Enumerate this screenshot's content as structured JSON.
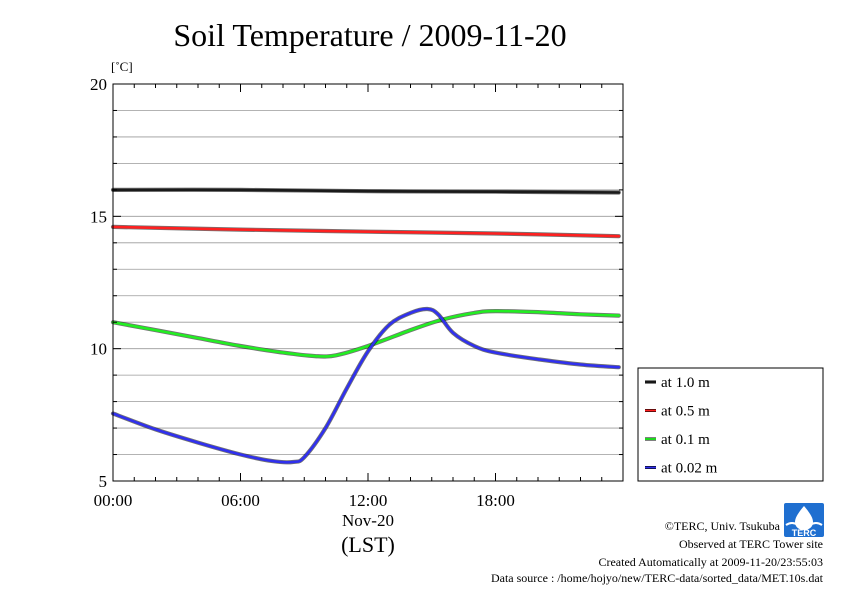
{
  "chart_data": {
    "type": "line",
    "title": "Soil Temperature / 2009-11-20",
    "ylabel": "[˚C]",
    "xlabel": "(LST)",
    "x_date_label": "Nov-20",
    "x_ticks": [
      {
        "hour": 0,
        "label": "00:00"
      },
      {
        "hour": 6,
        "label": "06:00"
      },
      {
        "hour": 12,
        "label": "12:00"
      },
      {
        "hour": 18,
        "label": "18:00"
      }
    ],
    "y_ticks": [
      5,
      10,
      15,
      20
    ],
    "ylim": [
      5,
      20
    ],
    "xlim": [
      "2009-11-20 00:00",
      "2009-11-21 00:00"
    ],
    "grid": true,
    "legend_position": "right-bottom",
    "series": [
      {
        "name": "at 1.0 m",
        "color": "#1a1a1a",
        "x": [
          0,
          6,
          12,
          18,
          23.8
        ],
        "y": [
          16.0,
          16.0,
          15.95,
          15.93,
          15.9
        ]
      },
      {
        "name": "at 0.5 m",
        "color": "#ff2020",
        "x": [
          0,
          6,
          12,
          18,
          23.8
        ],
        "y": [
          14.6,
          14.5,
          14.42,
          14.35,
          14.25
        ]
      },
      {
        "name": "at 0.1 m",
        "color": "#22ee22",
        "x": [
          0,
          2,
          4,
          6,
          8,
          9.5,
          10.5,
          12,
          14,
          15.5,
          17,
          18,
          20,
          22,
          23.8
        ],
        "y": [
          11.0,
          10.7,
          10.4,
          10.1,
          9.85,
          9.72,
          9.75,
          10.1,
          10.7,
          11.1,
          11.35,
          11.42,
          11.38,
          11.3,
          11.25
        ]
      },
      {
        "name": "at 0.02 m",
        "color": "#3030ee",
        "x": [
          0,
          2,
          4,
          6,
          7.5,
          8.5,
          9,
          10,
          11,
          12,
          13,
          14,
          14.8,
          15.3,
          16,
          17,
          18,
          20,
          22,
          23.8
        ],
        "y": [
          7.55,
          6.95,
          6.45,
          6.0,
          5.75,
          5.72,
          5.9,
          7.0,
          8.5,
          9.9,
          10.9,
          11.35,
          11.5,
          11.3,
          10.6,
          10.1,
          9.85,
          9.6,
          9.4,
          9.3
        ]
      }
    ]
  },
  "footer": {
    "copyright": "©TERC, Univ. Tsukuba",
    "observed": "Observed at TERC Tower site",
    "created": "Created Automatically at 2009-11-20/23:55:03",
    "source": "Data source : /home/hojyo/new/TERC-data/sorted_data/MET.10s.dat"
  },
  "logo": {
    "text": "TERC",
    "color": "#1f6fd0"
  }
}
